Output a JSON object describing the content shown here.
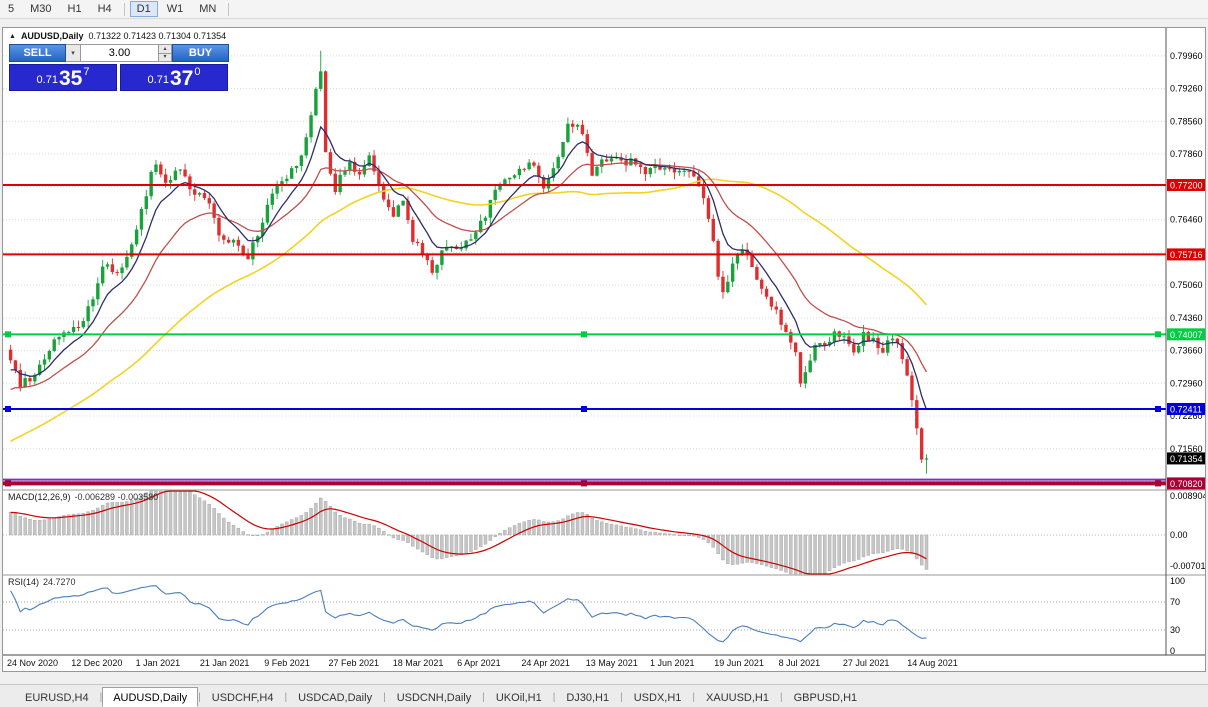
{
  "icons": {
    "collapse": "▲",
    "chevron_down": "▾",
    "chevron_up": "▴"
  },
  "toolbar": {
    "items": [
      {
        "label": "5"
      },
      {
        "label": "M30"
      },
      {
        "label": "H1"
      },
      {
        "label": "H4"
      },
      {
        "sep": true
      },
      {
        "label": "D1",
        "pressed": true
      },
      {
        "label": "W1"
      },
      {
        "label": "MN"
      },
      {
        "sep": true
      }
    ]
  },
  "window": {
    "title": "AUDUSD,Daily",
    "ohlc": "0.71322 0.71423 0.71304 0.71354",
    "collapse_glyph": "▲"
  },
  "trade_panel": {
    "sell_label": "SELL",
    "buy_label": "BUY",
    "volume": "3.00",
    "bid": {
      "prefix": "0.71",
      "big": "35",
      "sup": "7"
    },
    "ask": {
      "prefix": "0.71",
      "big": "37",
      "sup": "0"
    }
  },
  "chart": {
    "price_axis": [
      "0.79960",
      "0.79260",
      "0.78560",
      "0.77860",
      "0.76460",
      "0.75060",
      "0.74360",
      "0.73660",
      "0.72960",
      "0.72260",
      "0.71560"
    ],
    "hlines": [
      {
        "price": 0.772,
        "label": "0.77200",
        "color": "#dd0000",
        "width": 2,
        "handles": false
      },
      {
        "price": 0.75716,
        "label": "0.75716",
        "color": "#dd0000",
        "width": 2,
        "handles": false
      },
      {
        "price": 0.74007,
        "label": "0.74007",
        "color": "#00cc44",
        "width": 2,
        "handles": true
      },
      {
        "price": 0.72411,
        "label": "0.72411",
        "color": "#0000dd",
        "width": 2,
        "handles": true
      },
      {
        "price": 0.709,
        "color": "#7733bb",
        "width": 2,
        "handles": false
      },
      {
        "price": 0.7082,
        "label": "0.70820",
        "color": "#aa0033",
        "width": 4,
        "handles": true
      }
    ],
    "current_price": {
      "label": "0.71354",
      "price": 0.71354,
      "bg": "#000000"
    },
    "candles": {
      "count": 190,
      "up_color": "#17a33a",
      "down_color": "#dd2f2f"
    },
    "mas": [
      {
        "type": "sma",
        "period": 55,
        "color": "#f2d321"
      },
      {
        "type": "ema",
        "period": 21,
        "color": "#c0504d"
      },
      {
        "type": "ema",
        "period": 8,
        "color": "#2d2d6b"
      }
    ],
    "macd": {
      "label": "MACD(12,26,9)",
      "values": "-0.006289 -0.003580",
      "axis": [
        "0.008904",
        "0.00",
        "-0.00701"
      ],
      "hist_color": "#c6c6c6",
      "signal_color": "#cc0000"
    },
    "rsi": {
      "label": "RSI(14)",
      "value": "24.7270",
      "axis": [
        "100",
        "70",
        "30",
        "0"
      ],
      "axis_values": [
        100,
        70,
        30,
        0
      ],
      "levels": [
        70,
        30
      ],
      "line_color": "#4a7ebb"
    },
    "dates": [
      "24 Nov 2020",
      "12 Dec 2020",
      "1 Jan 2021",
      "21 Jan 2021",
      "9 Feb 2021",
      "27 Feb 2021",
      "18 Mar 2021",
      "6 Apr 2021",
      "24 Apr 2021",
      "13 May 2021",
      "1 Jun 2021",
      "19 Jun 2021",
      "8 Jul 2021",
      "27 Jul 2021",
      "14 Aug 2021"
    ],
    "price_path": [
      [
        0.0,
        0.7353
      ],
      [
        0.011,
        0.7292
      ],
      [
        0.029,
        0.732
      ],
      [
        0.051,
        0.7394
      ],
      [
        0.073,
        0.7414
      ],
      [
        0.087,
        0.7465
      ],
      [
        0.103,
        0.7556
      ],
      [
        0.117,
        0.753
      ],
      [
        0.131,
        0.7585
      ],
      [
        0.146,
        0.7688
      ],
      [
        0.157,
        0.777
      ],
      [
        0.169,
        0.7716
      ],
      [
        0.182,
        0.7754
      ],
      [
        0.198,
        0.771
      ],
      [
        0.215,
        0.7682
      ],
      [
        0.229,
        0.7612
      ],
      [
        0.244,
        0.76
      ],
      [
        0.258,
        0.7562
      ],
      [
        0.273,
        0.763
      ],
      [
        0.286,
        0.771
      ],
      [
        0.3,
        0.7736
      ],
      [
        0.315,
        0.7766
      ],
      [
        0.327,
        0.7858
      ],
      [
        0.336,
        0.7962
      ],
      [
        0.344,
        0.7788
      ],
      [
        0.354,
        0.7706
      ],
      [
        0.367,
        0.7768
      ],
      [
        0.381,
        0.7745
      ],
      [
        0.391,
        0.7784
      ],
      [
        0.406,
        0.7696
      ],
      [
        0.419,
        0.7652
      ],
      [
        0.428,
        0.7688
      ],
      [
        0.438,
        0.7602
      ],
      [
        0.451,
        0.7576
      ],
      [
        0.462,
        0.7526
      ],
      [
        0.474,
        0.7598
      ],
      [
        0.487,
        0.7582
      ],
      [
        0.501,
        0.7608
      ],
      [
        0.515,
        0.764
      ],
      [
        0.528,
        0.7706
      ],
      [
        0.542,
        0.773
      ],
      [
        0.555,
        0.7754
      ],
      [
        0.569,
        0.7762
      ],
      [
        0.583,
        0.7718
      ],
      [
        0.597,
        0.7782
      ],
      [
        0.609,
        0.785
      ],
      [
        0.622,
        0.7838
      ],
      [
        0.635,
        0.7746
      ],
      [
        0.646,
        0.777
      ],
      [
        0.662,
        0.7772
      ],
      [
        0.678,
        0.7768
      ],
      [
        0.695,
        0.775
      ],
      [
        0.711,
        0.7758
      ],
      [
        0.724,
        0.7742
      ],
      [
        0.738,
        0.7752
      ],
      [
        0.749,
        0.7738
      ],
      [
        0.758,
        0.768
      ],
      [
        0.768,
        0.7596
      ],
      [
        0.775,
        0.7482
      ],
      [
        0.785,
        0.753
      ],
      [
        0.796,
        0.7585
      ],
      [
        0.807,
        0.756
      ],
      [
        0.817,
        0.7505
      ],
      [
        0.826,
        0.7482
      ],
      [
        0.837,
        0.7442
      ],
      [
        0.847,
        0.741
      ],
      [
        0.856,
        0.7375
      ],
      [
        0.863,
        0.7292
      ],
      [
        0.872,
        0.7335
      ],
      [
        0.881,
        0.7398
      ],
      [
        0.891,
        0.737
      ],
      [
        0.9,
        0.74
      ],
      [
        0.909,
        0.7392
      ],
      [
        0.92,
        0.7358
      ],
      [
        0.931,
        0.7402
      ],
      [
        0.942,
        0.7385
      ],
      [
        0.953,
        0.7365
      ],
      [
        0.962,
        0.74
      ],
      [
        0.97,
        0.737
      ],
      [
        0.978,
        0.732
      ],
      [
        0.986,
        0.724
      ],
      [
        0.992,
        0.7165
      ],
      [
        0.996,
        0.7108
      ],
      [
        1.0,
        0.7135
      ]
    ]
  },
  "tabs": {
    "items": [
      {
        "label": "EURUSD,H4"
      },
      {
        "label": "AUDUSD,Daily",
        "active": true
      },
      {
        "label": "USDCHF,H4"
      },
      {
        "label": "USDCAD,Daily"
      },
      {
        "label": "USDCNH,Daily"
      },
      {
        "label": "UKOil,H1"
      },
      {
        "label": "DJ30,H1"
      },
      {
        "label": "USDX,H1"
      },
      {
        "label": "XAUUSD,H1"
      },
      {
        "label": "GBPUSD,H1"
      }
    ]
  }
}
